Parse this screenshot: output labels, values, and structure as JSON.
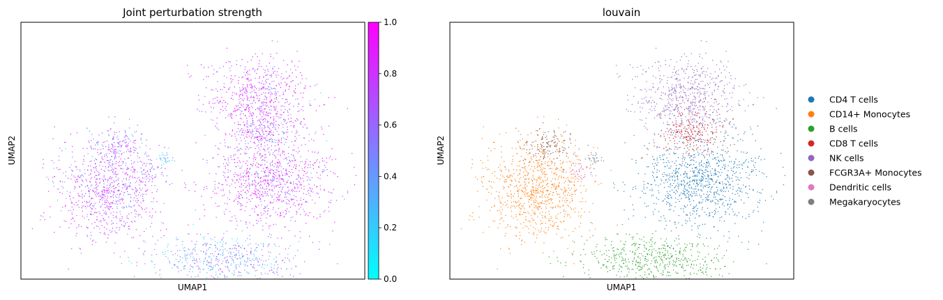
{
  "chart_data": [
    {
      "type": "scatter",
      "title": "Joint perturbation strength",
      "xlabel": "UMAP1",
      "ylabel": "UMAP2",
      "grid": false,
      "colormap": "cool",
      "colorbar": {
        "min": 0.0,
        "max": 1.0,
        "ticks": [
          "0.0",
          "0.2",
          "0.4",
          "0.6",
          "0.8",
          "1.0"
        ],
        "colors": [
          "#00ffff",
          "#ff00ff"
        ]
      },
      "clusters": [
        {
          "name": "left-blob",
          "strength": 0.75
        },
        {
          "name": "top-blob",
          "strength": 0.82
        },
        {
          "name": "center-blob",
          "strength": 0.78
        },
        {
          "name": "bottom-blob",
          "strength": 0.45
        }
      ]
    },
    {
      "type": "scatter",
      "title": "louvain",
      "xlabel": "UMAP1",
      "ylabel": "UMAP2",
      "grid": false,
      "legend_position": "right",
      "series": [
        {
          "name": "CD4 T cells",
          "color": "#1f77b4"
        },
        {
          "name": "CD14+ Monocytes",
          "color": "#ff7f0e"
        },
        {
          "name": "B cells",
          "color": "#2ca02c"
        },
        {
          "name": "CD8 T cells",
          "color": "#d62728"
        },
        {
          "name": "NK cells",
          "color": "#9467bd"
        },
        {
          "name": "FCGR3A+ Monocytes",
          "color": "#8c564b"
        },
        {
          "name": "Dendritic cells",
          "color": "#e377c2"
        },
        {
          "name": "Megakaryocytes",
          "color": "#7f7f7f"
        }
      ]
    }
  ]
}
